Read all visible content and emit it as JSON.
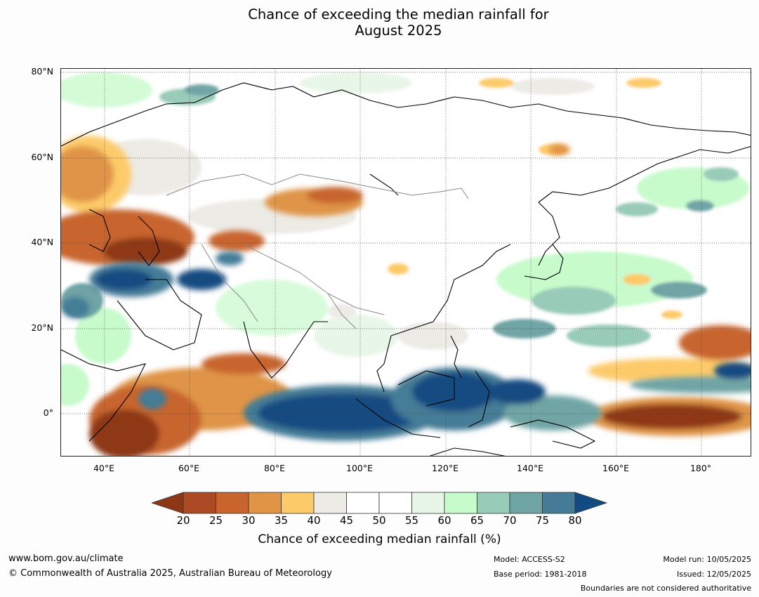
{
  "title_line1": "Chance of exceeding the median rainfall for",
  "title_line2": "August 2025",
  "lat_labels": [
    "80°N",
    "60°N",
    "40°N",
    "20°N",
    "0°"
  ],
  "lon_labels": [
    "40°E",
    "60°E",
    "80°E",
    "100°E",
    "120°E",
    "140°E",
    "160°E",
    "180°"
  ],
  "colorbar": {
    "ticks": [
      "20",
      "25",
      "30",
      "35",
      "40",
      "45",
      "50",
      "55",
      "60",
      "65",
      "70",
      "75",
      "80"
    ],
    "colors": [
      "#ab4a25",
      "#c8652f",
      "#df9446",
      "#fdca6a",
      "#edebe6",
      "#ffffff",
      "#ffffff",
      "#e8f6e8",
      "#c8fbcc",
      "#98cbb8",
      "#6fa4a5",
      "#457b96"
    ],
    "low_color": "#8e3716",
    "high_color": "#124b82",
    "label": "Chance of exceeding median rainfall (%)"
  },
  "footer": {
    "website": "www.bom.gov.au/climate",
    "copyright": "© Commonwealth of Australia 2025, Australian Bureau of Meteorology",
    "model": "Model: ACCESS-S2",
    "base_period": "Base period: 1981-2018",
    "model_run": "Model run: 10/05/2025",
    "issued": "Issued: 12/05/2025",
    "disclaimer": "Boundaries are not considered authoritative"
  }
}
